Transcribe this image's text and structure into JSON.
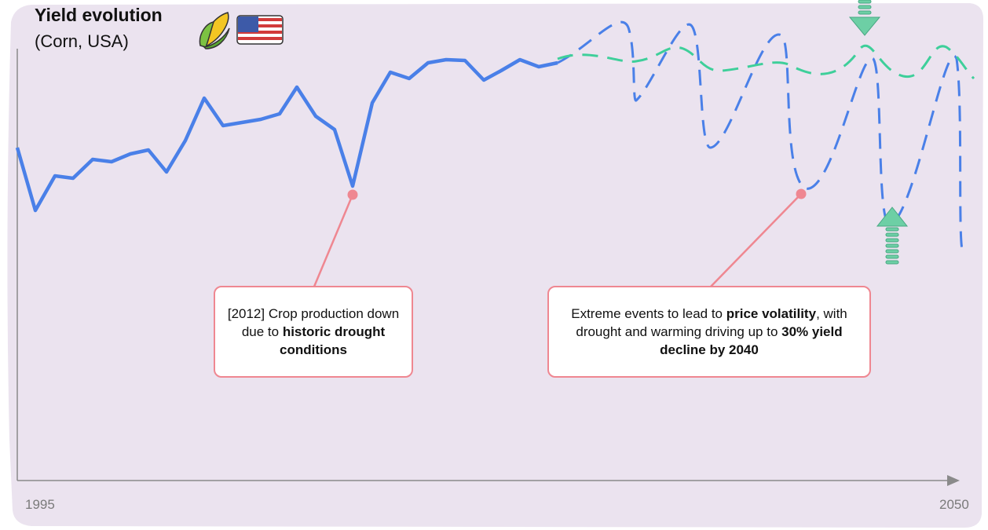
{
  "title": "Yield evolution",
  "subtitle": "(Corn, USA)",
  "axis": {
    "start": "1995",
    "end": "2050"
  },
  "annotations": [
    {
      "parts": [
        "[2012] Crop production down due to ",
        "historic drought conditions"
      ]
    },
    {
      "parts": [
        "Extreme events to lead to ",
        "price volatility",
        ", with drought and warming driving up to ",
        "30% yield decline by 2040"
      ]
    }
  ]
}
